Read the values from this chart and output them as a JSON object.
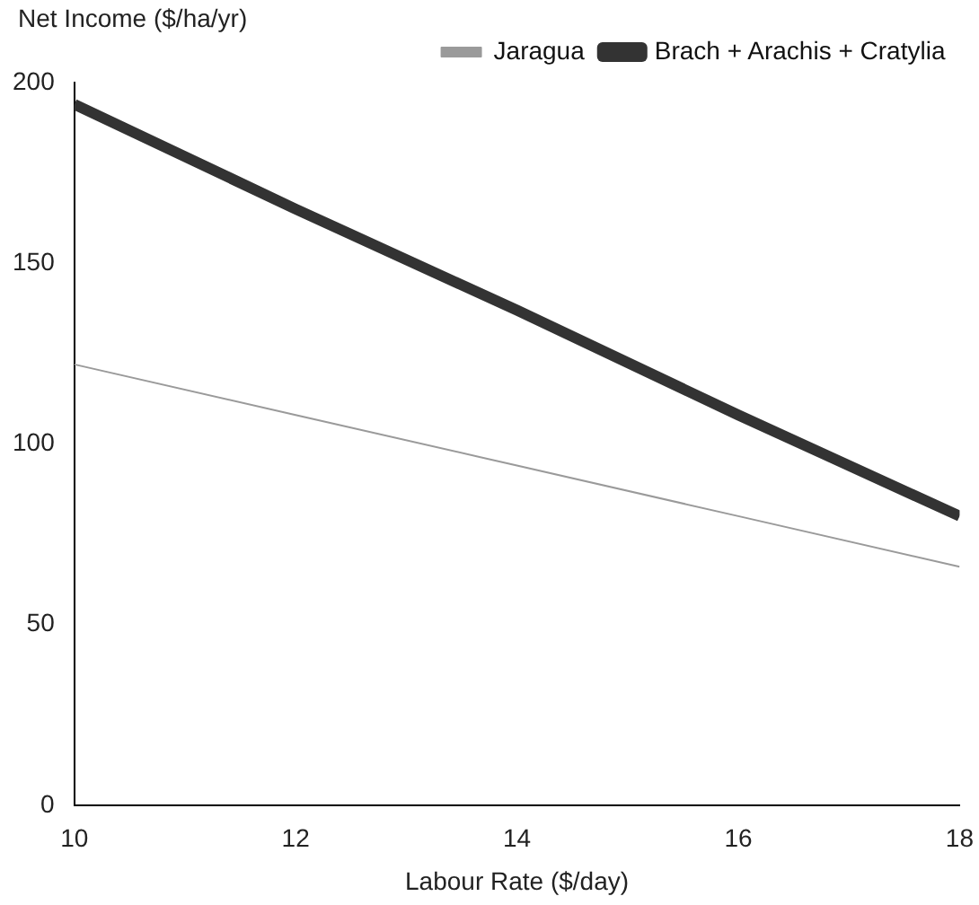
{
  "chart_data": {
    "type": "line",
    "ylabel": "Net Income ($/ha/yr)",
    "xlabel": "Labour Rate ($/day)",
    "x": [
      10,
      12,
      14,
      16,
      18
    ],
    "series": [
      {
        "name": "Jaragua",
        "color": "#9a9a9a",
        "values": [
          122,
          108,
          94,
          80,
          66
        ]
      },
      {
        "name": "Brach + Arachis + Cratylia",
        "color": "#333333",
        "values": [
          194,
          165,
          137,
          108,
          80
        ]
      }
    ],
    "xlim": [
      10,
      18
    ],
    "xticks": [
      10,
      12,
      14,
      16,
      18
    ],
    "ylim": [
      0,
      200
    ],
    "yticks": [
      0,
      50,
      100,
      150,
      200
    ],
    "grid": false,
    "legend": "top right"
  }
}
